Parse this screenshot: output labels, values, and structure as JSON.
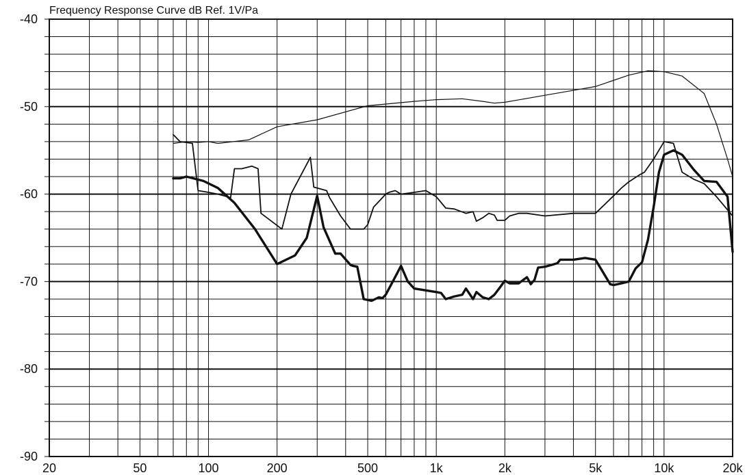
{
  "chart_data": {
    "type": "line",
    "title": "Frequency Response Curve dB Ref. 1V/Pa",
    "xlabel": "",
    "ylabel": "",
    "x_scale": "log",
    "xlim": [
      20,
      20000
    ],
    "ylim": [
      -90,
      -40
    ],
    "x_tick_values": [
      20,
      50,
      100,
      200,
      500,
      1000,
      2000,
      5000,
      10000,
      20000
    ],
    "x_tick_labels": [
      "20",
      "50",
      "100",
      "200",
      "500",
      "1k",
      "2k",
      "5k",
      "10k",
      "20k"
    ],
    "y_tick_values": [
      -40,
      -50,
      -60,
      -70,
      -80,
      -90
    ],
    "y_tick_labels": [
      "-40",
      "-50",
      "-60",
      "-70",
      "-80",
      "-90"
    ],
    "grid": true,
    "legend": "none",
    "colors": {
      "line": "#111111",
      "grid": "#111111",
      "background": "#ffffff"
    },
    "series": [
      {
        "style": "thin",
        "x": [
          70,
          80,
          90,
          100,
          110,
          150,
          200,
          300,
          500,
          800,
          1000,
          1300,
          1600,
          1800,
          2000,
          3000,
          5000,
          7000,
          8500,
          10000,
          12000,
          15000,
          17000,
          19000,
          20000
        ],
        "y": [
          -54.2,
          -54,
          -54.1,
          -54,
          -54.2,
          -53.8,
          -52.3,
          -51.5,
          -49.9,
          -49.4,
          -49.2,
          -49.1,
          -49.4,
          -49.6,
          -49.5,
          -48.7,
          -47.7,
          -46.4,
          -45.9,
          -46,
          -46.5,
          -48.5,
          -52,
          -56,
          -58
        ]
      },
      {
        "style": "medium",
        "x": [
          70,
          75,
          85,
          90,
          100,
          110,
          125,
          130,
          140,
          155,
          165,
          170,
          210,
          230,
          280,
          290,
          330,
          340,
          380,
          420,
          480,
          500,
          530,
          600,
          620,
          660,
          700,
          800,
          900,
          1000,
          1100,
          1200,
          1350,
          1450,
          1500,
          1600,
          1700,
          1800,
          1850,
          2000,
          2100,
          2300,
          2500,
          3000,
          4000,
          5000,
          6000,
          6500,
          7000,
          7800,
          8200,
          9000,
          10000,
          11000,
          12000,
          13500,
          15000,
          17000,
          20000
        ],
        "y": [
          -53.2,
          -54,
          -54.2,
          -59.6,
          -59.8,
          -60,
          -60.4,
          -57.1,
          -57.1,
          -56.8,
          -57.1,
          -62.2,
          -64,
          -60,
          -55.8,
          -59.2,
          -59.6,
          -60.4,
          -62.5,
          -64,
          -64,
          -63.5,
          -61.5,
          -60,
          -59.8,
          -59.6,
          -60,
          -59.8,
          -59.6,
          -60.3,
          -61.6,
          -61.7,
          -62.2,
          -62,
          -63.1,
          -62.7,
          -62.2,
          -62.4,
          -63,
          -63,
          -62.5,
          -62.2,
          -62.2,
          -62.5,
          -62.2,
          -62.2,
          -60.2,
          -59.3,
          -58.6,
          -57.8,
          -57.5,
          -56,
          -54,
          -54.2,
          -57.5,
          -58.3,
          -58.8,
          -60.3,
          -62.5
        ]
      },
      {
        "style": "thick",
        "x": [
          70,
          75,
          80,
          95,
          110,
          130,
          160,
          200,
          240,
          270,
          300,
          320,
          360,
          380,
          420,
          430,
          450,
          480,
          520,
          560,
          580,
          600,
          650,
          700,
          750,
          800,
          1000,
          1050,
          1100,
          1200,
          1300,
          1350,
          1450,
          1500,
          1600,
          1700,
          1800,
          1900,
          2000,
          2100,
          2300,
          2500,
          2600,
          2700,
          2800,
          3000,
          3400,
          3500,
          4000,
          4500,
          5000,
          5800,
          6000,
          6500,
          7000,
          7500,
          8000,
          8500,
          9000,
          9500,
          10000,
          11000,
          12000,
          13500,
          15000,
          17000,
          19000,
          20000
        ],
        "y": [
          -58.2,
          -58.2,
          -58,
          -58.5,
          -59.3,
          -61,
          -64,
          -68,
          -67,
          -65,
          -60.2,
          -63.8,
          -66.8,
          -66.8,
          -68.1,
          -68.2,
          -68.3,
          -72,
          -72.2,
          -71.8,
          -71.9,
          -71.5,
          -69.8,
          -68.2,
          -70,
          -70.8,
          -71.2,
          -71.3,
          -72,
          -71.7,
          -71.5,
          -70.8,
          -72,
          -71.2,
          -71.8,
          -72,
          -71.5,
          -70.7,
          -69.9,
          -70.2,
          -70.2,
          -69.5,
          -70.3,
          -69.8,
          -68.4,
          -68.3,
          -67.9,
          -67.5,
          -67.5,
          -67.3,
          -67.5,
          -70.3,
          -70.4,
          -70.2,
          -70,
          -68.5,
          -67.8,
          -65.2,
          -61.5,
          -57.5,
          -55.5,
          -55,
          -55.5,
          -57.2,
          -58.5,
          -58.6,
          -60.3,
          -66.6
        ]
      }
    ]
  }
}
